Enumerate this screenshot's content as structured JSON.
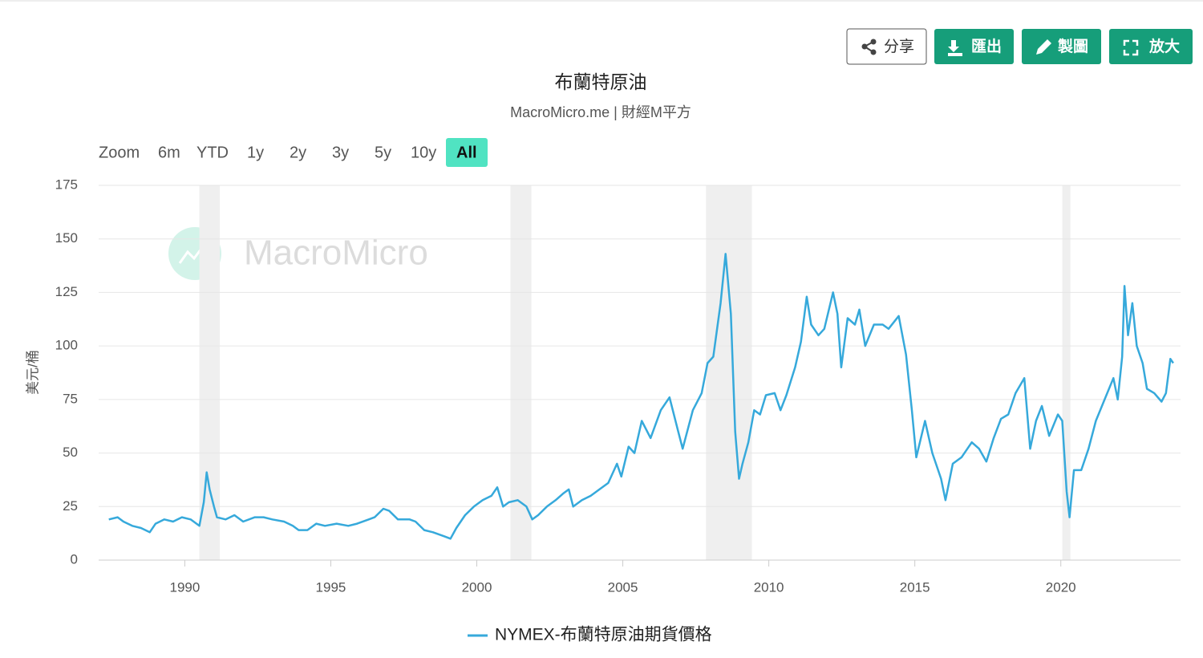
{
  "ui": {
    "buttons": [
      "分享",
      "匯出",
      "製圖",
      "放大"
    ],
    "range_selector": {
      "label": "Zoom",
      "options": [
        "6m",
        "YTD",
        "1y",
        "2y",
        "3y",
        "5y",
        "10y",
        "All"
      ],
      "selected": 7
    },
    "watermark": "MacroMicro"
  },
  "chart_data": {
    "type": "line",
    "title": "布蘭特原油",
    "subtitle": "MacroMicro.me | 財經M平方",
    "y_label": "美元/桶",
    "xlim": [
      1987.05,
      2024.1
    ],
    "ylim": [
      0,
      175
    ],
    "xticks": [
      1990,
      1995,
      2000,
      2005,
      2010,
      2015,
      2020
    ],
    "yticks": [
      0,
      25,
      50,
      75,
      100,
      125,
      150,
      175
    ],
    "grid": true,
    "shaded_periods": [
      [
        1990.5,
        1991.2
      ],
      [
        2001.15,
        2001.87
      ],
      [
        2007.85,
        2009.42
      ],
      [
        2020.05,
        2020.33
      ]
    ],
    "series": [
      {
        "name": "NYMEX-布蘭特原油期貨價格",
        "color": "#36a9db",
        "x": [
          1987.4,
          1987.7,
          1987.9,
          1988.2,
          1988.5,
          1988.8,
          1989.0,
          1989.3,
          1989.6,
          1989.9,
          1990.2,
          1990.5,
          1990.65,
          1990.75,
          1990.85,
          1991.0,
          1991.1,
          1991.4,
          1991.7,
          1992.0,
          1992.4,
          1992.7,
          1993.0,
          1993.4,
          1993.7,
          1993.9,
          1994.2,
          1994.5,
          1994.8,
          1995.2,
          1995.6,
          1995.9,
          1996.3,
          1996.5,
          1996.8,
          1997.0,
          1997.3,
          1997.7,
          1997.9,
          1998.2,
          1998.5,
          1998.9,
          1999.1,
          1999.3,
          1999.6,
          1999.9,
          2000.2,
          2000.5,
          2000.7,
          2000.9,
          2001.1,
          2001.4,
          2001.7,
          2001.9,
          2002.1,
          2002.4,
          2002.7,
          2002.95,
          2003.15,
          2003.3,
          2003.6,
          2003.9,
          2004.2,
          2004.5,
          2004.8,
          2004.95,
          2005.2,
          2005.4,
          2005.65,
          2005.95,
          2006.3,
          2006.6,
          2006.9,
          2007.05,
          2007.4,
          2007.7,
          2007.9,
          2008.1,
          2008.35,
          2008.52,
          2008.7,
          2008.85,
          2008.98,
          2009.1,
          2009.3,
          2009.5,
          2009.7,
          2009.9,
          2010.2,
          2010.4,
          2010.6,
          2010.9,
          2011.1,
          2011.3,
          2011.45,
          2011.7,
          2011.9,
          2012.2,
          2012.35,
          2012.48,
          2012.7,
          2012.95,
          2013.1,
          2013.3,
          2013.6,
          2013.9,
          2014.1,
          2014.45,
          2014.7,
          2014.9,
          2015.05,
          2015.35,
          2015.6,
          2015.9,
          2016.05,
          2016.3,
          2016.6,
          2016.95,
          2017.2,
          2017.45,
          2017.7,
          2017.95,
          2018.2,
          2018.45,
          2018.75,
          2018.95,
          2019.15,
          2019.35,
          2019.6,
          2019.9,
          2020.05,
          2020.2,
          2020.3,
          2020.45,
          2020.7,
          2020.95,
          2021.2,
          2021.5,
          2021.8,
          2021.95,
          2022.1,
          2022.18,
          2022.3,
          2022.45,
          2022.6,
          2022.8,
          2022.95,
          2023.2,
          2023.45,
          2023.6,
          2023.75,
          2023.85
        ],
        "values": [
          19,
          20,
          18,
          16,
          15,
          13,
          17,
          19,
          18,
          20,
          19,
          16,
          27,
          41,
          33,
          25,
          20,
          19,
          21,
          18,
          20,
          20,
          19,
          18,
          16,
          14,
          14,
          17,
          16,
          17,
          16,
          17,
          19,
          20,
          24,
          23,
          19,
          19,
          18,
          14,
          13,
          11,
          10,
          15,
          21,
          25,
          28,
          30,
          34,
          25,
          27,
          28,
          25,
          19,
          21,
          25,
          28,
          31,
          33,
          25,
          28,
          30,
          33,
          36,
          45,
          39,
          53,
          50,
          65,
          57,
          70,
          76,
          60,
          52,
          70,
          78,
          92,
          95,
          120,
          143,
          115,
          60,
          38,
          45,
          55,
          70,
          68,
          77,
          78,
          70,
          77,
          90,
          102,
          123,
          110,
          105,
          108,
          125,
          115,
          90,
          113,
          110,
          117,
          100,
          110,
          110,
          108,
          114,
          96,
          70,
          48,
          65,
          50,
          38,
          28,
          45,
          48,
          55,
          52,
          46,
          57,
          66,
          68,
          78,
          85,
          52,
          65,
          72,
          58,
          68,
          65,
          32,
          20,
          42,
          42,
          52,
          65,
          75,
          85,
          75,
          95,
          128,
          105,
          120,
          100,
          92,
          80,
          78,
          74,
          78,
          94,
          92
        ]
      }
    ]
  }
}
